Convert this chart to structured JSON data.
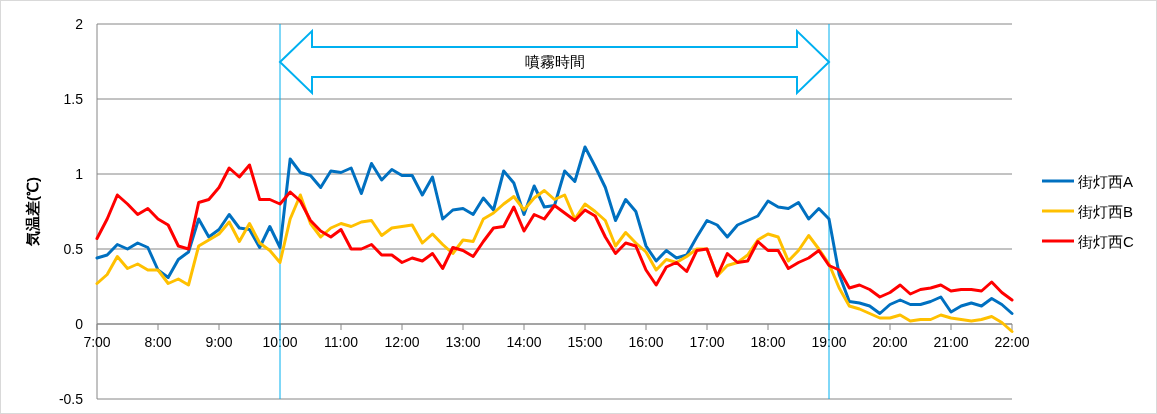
{
  "chart_data": {
    "type": "line",
    "ylabel": "気温差(℃)",
    "x": [
      7,
      7.1667,
      7.3333,
      7.5,
      7.6667,
      7.8333,
      8,
      8.1667,
      8.3333,
      8.5,
      8.6667,
      8.8333,
      9,
      9.1667,
      9.3333,
      9.5,
      9.6667,
      9.8333,
      10,
      10.1667,
      10.3333,
      10.5,
      10.6667,
      10.8333,
      11,
      11.1667,
      11.3333,
      11.5,
      11.6667,
      11.8333,
      12,
      12.1667,
      12.3333,
      12.5,
      12.6667,
      12.8333,
      13,
      13.1667,
      13.3333,
      13.5,
      13.6667,
      13.8333,
      14,
      14.1667,
      14.3333,
      14.5,
      14.6667,
      14.8333,
      15,
      15.1667,
      15.3333,
      15.5,
      15.6667,
      15.8333,
      16,
      16.1667,
      16.3333,
      16.5,
      16.6667,
      16.8333,
      17,
      17.1667,
      17.3333,
      17.5,
      17.6667,
      17.8333,
      18,
      18.1667,
      18.3333,
      18.5,
      18.6667,
      18.8333,
      19,
      19.1667,
      19.3333,
      19.5,
      19.6667,
      19.8333,
      20,
      20.1667,
      20.3333,
      20.5,
      20.6667,
      20.8333,
      21,
      21.1667,
      21.3333,
      21.5,
      21.6667,
      21.8333,
      22
    ],
    "series": [
      {
        "name": "街灯西A",
        "color": "#0070c0",
        "values": [
          0.44,
          0.46,
          0.53,
          0.5,
          0.54,
          0.51,
          0.36,
          0.31,
          0.43,
          0.48,
          0.7,
          0.58,
          0.63,
          0.73,
          0.64,
          0.63,
          0.51,
          0.65,
          0.51,
          1.1,
          1.01,
          0.99,
          0.91,
          1.02,
          1.01,
          1.04,
          0.87,
          1.07,
          0.96,
          1.03,
          0.99,
          0.99,
          0.86,
          0.98,
          0.7,
          0.76,
          0.77,
          0.73,
          0.84,
          0.76,
          1.02,
          0.94,
          0.73,
          0.92,
          0.78,
          0.79,
          1.02,
          0.95,
          1.18,
          1.05,
          0.91,
          0.69,
          0.83,
          0.75,
          0.52,
          0.42,
          0.49,
          0.44,
          0.46,
          0.58,
          0.69,
          0.66,
          0.58,
          0.66,
          0.69,
          0.72,
          0.82,
          0.78,
          0.77,
          0.81,
          0.7,
          0.77,
          0.7,
          0.33,
          0.15,
          0.14,
          0.12,
          0.07,
          0.13,
          0.16,
          0.13,
          0.13,
          0.15,
          0.18,
          0.08,
          0.12,
          0.14,
          0.12,
          0.17,
          0.13,
          0.07
        ]
      },
      {
        "name": "街灯西B",
        "color": "#ffc000",
        "values": [
          0.27,
          0.33,
          0.45,
          0.37,
          0.4,
          0.36,
          0.36,
          0.27,
          0.3,
          0.26,
          0.52,
          0.56,
          0.6,
          0.68,
          0.55,
          0.67,
          0.54,
          0.49,
          0.41,
          0.7,
          0.86,
          0.67,
          0.58,
          0.64,
          0.67,
          0.65,
          0.68,
          0.69,
          0.59,
          0.64,
          0.65,
          0.66,
          0.54,
          0.6,
          0.53,
          0.47,
          0.56,
          0.55,
          0.7,
          0.74,
          0.8,
          0.85,
          0.76,
          0.84,
          0.89,
          0.83,
          0.86,
          0.7,
          0.8,
          0.75,
          0.69,
          0.52,
          0.61,
          0.54,
          0.48,
          0.36,
          0.43,
          0.41,
          0.45,
          0.5,
          0.5,
          0.32,
          0.39,
          0.41,
          0.46,
          0.56,
          0.6,
          0.58,
          0.42,
          0.49,
          0.59,
          0.5,
          0.4,
          0.24,
          0.12,
          0.1,
          0.07,
          0.04,
          0.04,
          0.06,
          0.02,
          0.03,
          0.03,
          0.06,
          0.04,
          0.03,
          0.02,
          0.03,
          0.05,
          0.01,
          -0.05
        ]
      },
      {
        "name": "街灯西C",
        "color": "#ff0000",
        "values": [
          0.57,
          0.7,
          0.86,
          0.8,
          0.73,
          0.77,
          0.7,
          0.66,
          0.52,
          0.5,
          0.81,
          0.83,
          0.91,
          1.04,
          0.98,
          1.06,
          0.83,
          0.83,
          0.8,
          0.88,
          0.82,
          0.69,
          0.62,
          0.58,
          0.63,
          0.5,
          0.5,
          0.53,
          0.46,
          0.46,
          0.41,
          0.44,
          0.42,
          0.47,
          0.37,
          0.51,
          0.49,
          0.45,
          0.55,
          0.64,
          0.65,
          0.78,
          0.62,
          0.73,
          0.7,
          0.79,
          0.74,
          0.69,
          0.76,
          0.72,
          0.58,
          0.47,
          0.54,
          0.52,
          0.36,
          0.26,
          0.38,
          0.41,
          0.35,
          0.49,
          0.5,
          0.32,
          0.47,
          0.41,
          0.42,
          0.55,
          0.49,
          0.49,
          0.37,
          0.41,
          0.44,
          0.49,
          0.39,
          0.36,
          0.24,
          0.26,
          0.23,
          0.18,
          0.21,
          0.26,
          0.2,
          0.23,
          0.24,
          0.26,
          0.22,
          0.23,
          0.23,
          0.22,
          0.28,
          0.21,
          0.16
        ]
      }
    ],
    "xlim": [
      7,
      22
    ],
    "xticks": [
      {
        "value": 7,
        "label": "7:00"
      },
      {
        "value": 8,
        "label": "8:00"
      },
      {
        "value": 9,
        "label": "9:00"
      },
      {
        "value": 10,
        "label": "10:00"
      },
      {
        "value": 11,
        "label": "11:00"
      },
      {
        "value": 12,
        "label": "12:00"
      },
      {
        "value": 13,
        "label": "13:00"
      },
      {
        "value": 14,
        "label": "14:00"
      },
      {
        "value": 15,
        "label": "15:00"
      },
      {
        "value": 16,
        "label": "16:00"
      },
      {
        "value": 17,
        "label": "17:00"
      },
      {
        "value": 18,
        "label": "18:00"
      },
      {
        "value": 19,
        "label": "19:00"
      },
      {
        "value": 20,
        "label": "20:00"
      },
      {
        "value": 21,
        "label": "21:00"
      },
      {
        "value": 22,
        "label": "22:00"
      }
    ],
    "ylim": [
      -0.5,
      2
    ],
    "yticks": [
      -0.5,
      0,
      0.5,
      1,
      1.5,
      2
    ],
    "ref_lines": [
      {
        "axis": "x",
        "value": 10,
        "color": "#00b0f0"
      },
      {
        "axis": "x",
        "value": 19,
        "color": "#00b0f0"
      }
    ],
    "annotations": [
      "噴霧時間"
    ],
    "grid": "y",
    "legend": "right",
    "marker": "none",
    "line_style": "solid"
  }
}
